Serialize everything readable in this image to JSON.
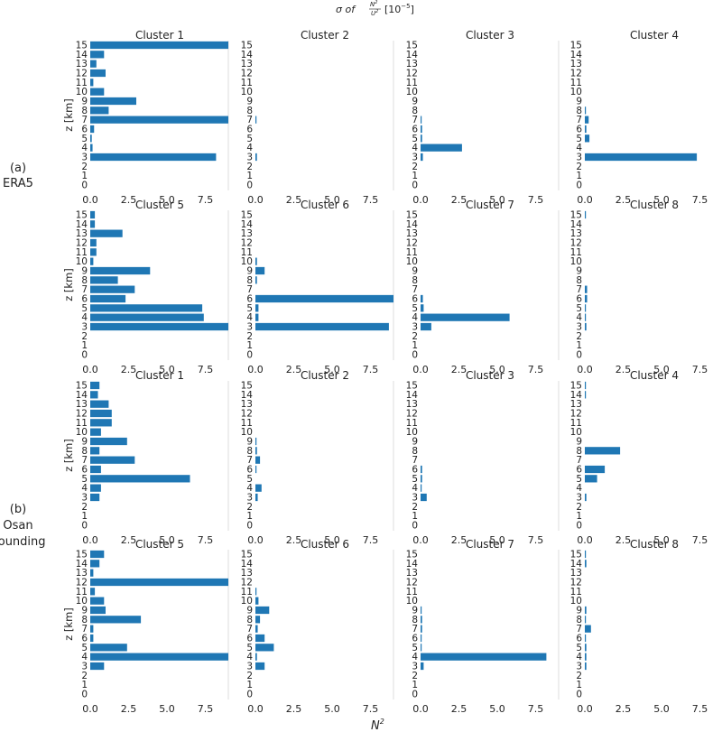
{
  "figure": {
    "top_title_prefix": "σ of",
    "top_title_num": "N",
    "top_title_num_sup": "2",
    "top_title_den": "U",
    "top_title_den_sup": "2",
    "top_title_suffix": "[10",
    "top_title_exp": "−5",
    "top_title_close": "]",
    "bottom_label_base": "N",
    "bottom_label_sup": "2",
    "group_a_letter": "(a)",
    "group_a_name": "ERA5",
    "group_b_letter": "(b)",
    "group_b_name": "Osan",
    "group_b_name2": "Sounding",
    "ylabel": "z [km]",
    "bar_color": "#1f77b4"
  },
  "chart_data": [
    {
      "type": "bar",
      "orientation": "horizontal",
      "title": "Cluster 1",
      "group": "ERA5",
      "ylabel": "z [km]",
      "categories": [
        0,
        1,
        2,
        3,
        4,
        5,
        6,
        7,
        8,
        9,
        10,
        11,
        12,
        13,
        14,
        15
      ],
      "xlim": [
        0,
        9
      ],
      "xticks": [
        "0.0",
        "2.5",
        "5.0",
        "7.5"
      ],
      "values": [
        0,
        0,
        0,
        8.2,
        0.15,
        0.1,
        0.25,
        9.0,
        1.2,
        3.0,
        0.9,
        0.2,
        1.0,
        0.4,
        0.9,
        9.0
      ]
    },
    {
      "type": "bar",
      "orientation": "horizontal",
      "title": "Cluster 2",
      "group": "ERA5",
      "categories": [
        0,
        1,
        2,
        3,
        4,
        5,
        6,
        7,
        8,
        9,
        10,
        11,
        12,
        13,
        14,
        15
      ],
      "xlim": [
        0,
        9
      ],
      "xticks": [
        "0.0",
        "2.5",
        "5.0",
        "7.5"
      ],
      "values": [
        0,
        0,
        0,
        0.1,
        0,
        0,
        0,
        0.05,
        0,
        0,
        0,
        0,
        0,
        0,
        0,
        0
      ]
    },
    {
      "type": "bar",
      "orientation": "horizontal",
      "title": "Cluster 3",
      "group": "ERA5",
      "categories": [
        0,
        1,
        2,
        3,
        4,
        5,
        6,
        7,
        8,
        9,
        10,
        11,
        12,
        13,
        14,
        15
      ],
      "xlim": [
        0,
        9
      ],
      "xticks": [
        "0.0",
        "2.5",
        "5.0",
        "7.5"
      ],
      "values": [
        0,
        0,
        0,
        0.15,
        2.7,
        0.1,
        0.1,
        0.05,
        0,
        0,
        0,
        0,
        0,
        0,
        0,
        0
      ]
    },
    {
      "type": "bar",
      "orientation": "horizontal",
      "title": "Cluster 4",
      "group": "ERA5",
      "categories": [
        0,
        1,
        2,
        3,
        4,
        5,
        6,
        7,
        8,
        9,
        10,
        11,
        12,
        13,
        14,
        15
      ],
      "xlim": [
        0,
        9
      ],
      "xticks": [
        "0.0",
        "2.5",
        "5.0",
        "7.5"
      ],
      "values": [
        0,
        0,
        0,
        7.3,
        0,
        0.3,
        0.1,
        0.25,
        0.05,
        0,
        0,
        0,
        0,
        0,
        0,
        0
      ]
    },
    {
      "type": "bar",
      "orientation": "horizontal",
      "title": "Cluster 5",
      "group": "ERA5",
      "ylabel": "z [km]",
      "categories": [
        0,
        1,
        2,
        3,
        4,
        5,
        6,
        7,
        8,
        9,
        10,
        11,
        12,
        13,
        14,
        15
      ],
      "xlim": [
        0,
        9
      ],
      "xticks": [
        "0.0",
        "2.5",
        "5.0",
        "7.5"
      ],
      "values": [
        0,
        0,
        0,
        9.0,
        7.4,
        7.3,
        2.3,
        2.9,
        1.8,
        3.9,
        0.2,
        0.4,
        0.4,
        2.1,
        0.3,
        0.3
      ]
    },
    {
      "type": "bar",
      "orientation": "horizontal",
      "title": "Cluster 6",
      "group": "ERA5",
      "categories": [
        0,
        1,
        2,
        3,
        4,
        5,
        6,
        7,
        8,
        9,
        10,
        11,
        12,
        13,
        14,
        15
      ],
      "xlim": [
        0,
        9
      ],
      "xticks": [
        "0.0",
        "2.5",
        "5.0",
        "7.5"
      ],
      "values": [
        0,
        0,
        0,
        8.7,
        0.2,
        0.2,
        9.0,
        0,
        0.1,
        0.6,
        0.1,
        0,
        0,
        0,
        0,
        0
      ]
    },
    {
      "type": "bar",
      "orientation": "horizontal",
      "title": "Cluster 7",
      "group": "ERA5",
      "categories": [
        0,
        1,
        2,
        3,
        4,
        5,
        6,
        7,
        8,
        9,
        10,
        11,
        12,
        13,
        14,
        15
      ],
      "xlim": [
        0,
        9
      ],
      "xticks": [
        "0.0",
        "2.5",
        "5.0",
        "7.5"
      ],
      "values": [
        0,
        0,
        0,
        0.7,
        5.8,
        0.2,
        0.15,
        0,
        0,
        0,
        0,
        0,
        0,
        0,
        0,
        0
      ]
    },
    {
      "type": "bar",
      "orientation": "horizontal",
      "title": "Cluster 8",
      "group": "ERA5",
      "categories": [
        0,
        1,
        2,
        3,
        4,
        5,
        6,
        7,
        8,
        9,
        10,
        11,
        12,
        13,
        14,
        15
      ],
      "xlim": [
        0,
        9
      ],
      "xticks": [
        "0.0",
        "2.5",
        "5.0",
        "7.5"
      ],
      "values": [
        0,
        0,
        0,
        0.1,
        0.05,
        0.05,
        0.15,
        0.15,
        0,
        0,
        0,
        0,
        0,
        0,
        0,
        0.05
      ]
    },
    {
      "type": "bar",
      "orientation": "horizontal",
      "title": "Cluster 1",
      "group": "Osan Sounding",
      "ylabel": "z [km]",
      "categories": [
        0,
        1,
        2,
        3,
        4,
        5,
        6,
        7,
        8,
        9,
        10,
        11,
        12,
        13,
        14,
        15
      ],
      "xlim": [
        0,
        9
      ],
      "xticks": [
        "0.0",
        "2.5",
        "5.0",
        "7.5"
      ],
      "values": [
        0,
        0,
        0,
        0.6,
        0.7,
        6.5,
        0.7,
        2.9,
        0.6,
        2.4,
        0.7,
        1.4,
        1.4,
        1.2,
        0.5,
        0.6
      ]
    },
    {
      "type": "bar",
      "orientation": "horizontal",
      "title": "Cluster 2",
      "group": "Osan Sounding",
      "categories": [
        0,
        1,
        2,
        3,
        4,
        5,
        6,
        7,
        8,
        9,
        10,
        11,
        12,
        13,
        14,
        15
      ],
      "xlim": [
        0,
        9
      ],
      "xticks": [
        "0.0",
        "2.5",
        "5.0",
        "7.5"
      ],
      "values": [
        0,
        0,
        0,
        0.15,
        0.4,
        0,
        0.05,
        0.3,
        0.1,
        0.05,
        0,
        0,
        0,
        0,
        0,
        0
      ]
    },
    {
      "type": "bar",
      "orientation": "horizontal",
      "title": "Cluster 3",
      "group": "Osan Sounding",
      "categories": [
        0,
        1,
        2,
        3,
        4,
        5,
        6,
        7,
        8,
        9,
        10,
        11,
        12,
        13,
        14,
        15
      ],
      "xlim": [
        0,
        9
      ],
      "xticks": [
        "0.0",
        "2.5",
        "5.0",
        "7.5"
      ],
      "values": [
        0,
        0,
        0,
        0.4,
        0.05,
        0.1,
        0.1,
        0,
        0,
        0,
        0,
        0,
        0,
        0,
        0,
        0
      ]
    },
    {
      "type": "bar",
      "orientation": "horizontal",
      "title": "Cluster 4",
      "group": "Osan Sounding",
      "categories": [
        0,
        1,
        2,
        3,
        4,
        5,
        6,
        7,
        8,
        9,
        10,
        11,
        12,
        13,
        14,
        15
      ],
      "xlim": [
        0,
        9
      ],
      "xticks": [
        "0.0",
        "2.5",
        "5.0",
        "7.5"
      ],
      "values": [
        0,
        0,
        0,
        0.1,
        0,
        0.8,
        1.3,
        0,
        2.3,
        0,
        0,
        0,
        0,
        0,
        0.05,
        0.05
      ]
    },
    {
      "type": "bar",
      "orientation": "horizontal",
      "title": "Cluster 5",
      "group": "Osan Sounding",
      "ylabel": "z [km]",
      "categories": [
        0,
        1,
        2,
        3,
        4,
        5,
        6,
        7,
        8,
        9,
        10,
        11,
        12,
        13,
        14,
        15
      ],
      "xlim": [
        0,
        9
      ],
      "xticks": [
        "0.0",
        "2.5",
        "5.0",
        "7.5"
      ],
      "values": [
        0,
        0,
        0,
        0.9,
        9.0,
        2.4,
        0.2,
        0.2,
        3.3,
        1.0,
        0.9,
        0.3,
        9.0,
        0.2,
        0.6,
        0.9
      ]
    },
    {
      "type": "bar",
      "orientation": "horizontal",
      "title": "Cluster 6",
      "group": "Osan Sounding",
      "categories": [
        0,
        1,
        2,
        3,
        4,
        5,
        6,
        7,
        8,
        9,
        10,
        11,
        12,
        13,
        14,
        15
      ],
      "xlim": [
        0,
        9
      ],
      "xticks": [
        "0.0",
        "2.5",
        "5.0",
        "7.5"
      ],
      "values": [
        0,
        0,
        0,
        0.6,
        0.1,
        1.2,
        0.6,
        0.15,
        0.3,
        0.9,
        0.2,
        0.05,
        0,
        0,
        0,
        0
      ]
    },
    {
      "type": "bar",
      "orientation": "horizontal",
      "title": "Cluster 7",
      "group": "Osan Sounding",
      "categories": [
        0,
        1,
        2,
        3,
        4,
        5,
        6,
        7,
        8,
        9,
        10,
        11,
        12,
        13,
        14,
        15
      ],
      "xlim": [
        0,
        9
      ],
      "xticks": [
        "0.0",
        "2.5",
        "5.0",
        "7.5"
      ],
      "values": [
        0,
        0,
        0,
        0.2,
        8.2,
        0.05,
        0.05,
        0.1,
        0.1,
        0.05,
        0,
        0,
        0,
        0,
        0,
        0
      ]
    },
    {
      "type": "bar",
      "orientation": "horizontal",
      "title": "Cluster 8",
      "group": "Osan Sounding",
      "categories": [
        0,
        1,
        2,
        3,
        4,
        5,
        6,
        7,
        8,
        9,
        10,
        11,
        12,
        13,
        14,
        15
      ],
      "xlim": [
        0,
        9
      ],
      "xticks": [
        "0.0",
        "2.5",
        "5.0",
        "7.5"
      ],
      "values": [
        0,
        0,
        0,
        0.1,
        0.1,
        0.1,
        0.05,
        0.4,
        0.05,
        0.1,
        0,
        0,
        0,
        0,
        0.1,
        0.05
      ]
    }
  ]
}
